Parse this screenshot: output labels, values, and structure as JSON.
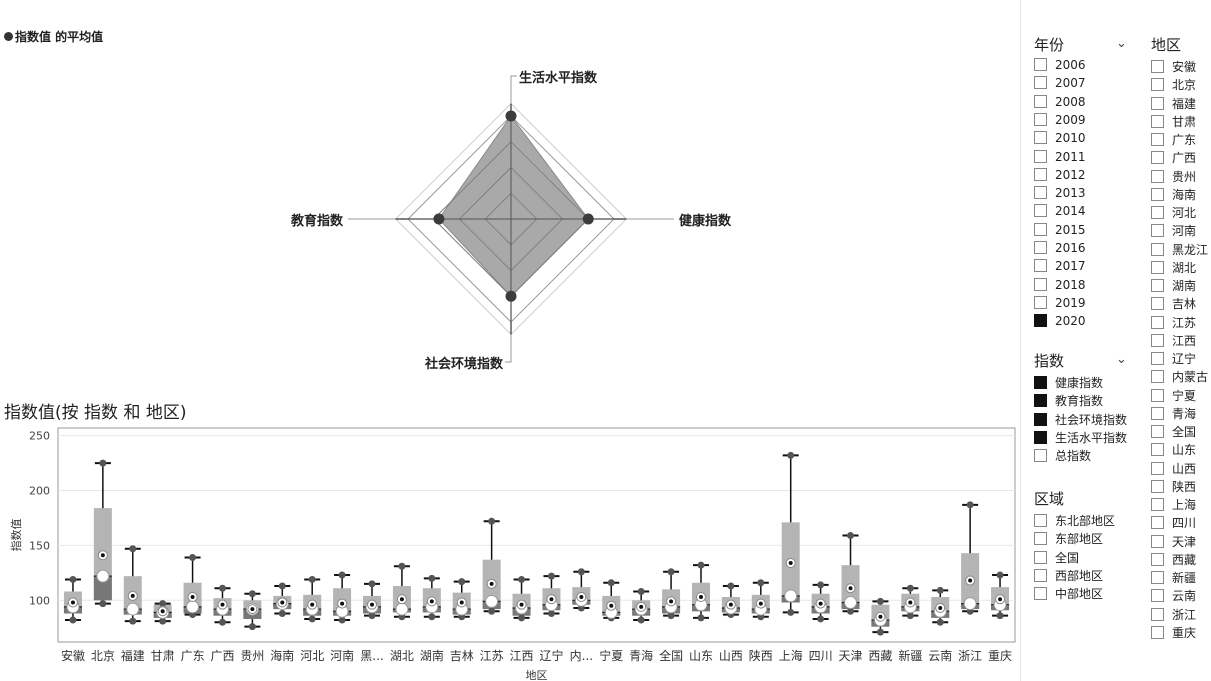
{
  "radar": {
    "legend_label": "指数值 的平均值",
    "axes": [
      "生活水平指数",
      "健康指数",
      "社会环境指数",
      "教育指数"
    ],
    "values": [
      100,
      75,
      75,
      70
    ],
    "rmax": 100
  },
  "boxplot": {
    "title": "指数值(按 指数 和 地区)",
    "xlabel": "地区",
    "ylabel": "指数值"
  },
  "slicers": {
    "year": {
      "title": "年份",
      "items": [
        "2006",
        "2007",
        "2008",
        "2009",
        "2010",
        "2011",
        "2012",
        "2013",
        "2014",
        "2015",
        "2016",
        "2017",
        "2018",
        "2019",
        "2020"
      ],
      "selected": [
        "2020"
      ]
    },
    "index": {
      "title": "指数",
      "items": [
        "健康指数",
        "教育指数",
        "社会环境指数",
        "生活水平指数",
        "总指数"
      ],
      "selected": [
        "健康指数",
        "教育指数",
        "社会环境指数",
        "生活水平指数"
      ]
    },
    "zone": {
      "title": "区域",
      "items": [
        "东北部地区",
        "东部地区",
        "全国",
        "西部地区",
        "中部地区"
      ],
      "selected": []
    },
    "region": {
      "title": "地区",
      "items": [
        "安徽",
        "北京",
        "福建",
        "甘肃",
        "广东",
        "广西",
        "贵州",
        "海南",
        "河北",
        "河南",
        "黑龙江",
        "湖北",
        "湖南",
        "吉林",
        "江苏",
        "江西",
        "辽宁",
        "内蒙古",
        "宁夏",
        "青海",
        "全国",
        "山东",
        "山西",
        "陕西",
        "上海",
        "四川",
        "天津",
        "西藏",
        "新疆",
        "云南",
        "浙江",
        "重庆"
      ],
      "selected": []
    }
  },
  "chart_data": [
    {
      "type": "radar",
      "title": "",
      "legend": [
        "指数值 的平均值"
      ],
      "categories": [
        "生活水平指数",
        "健康指数",
        "社会环境指数",
        "教育指数"
      ],
      "series": [
        {
          "name": "指数值 的平均值",
          "values": [
            100,
            75,
            75,
            70
          ]
        }
      ]
    },
    {
      "type": "boxplot",
      "title": "指数值(按 指数 和 地区)",
      "xlabel": "地区",
      "ylabel": "指数值",
      "ylim": [
        62,
        257
      ],
      "yticks": [
        100,
        150,
        200,
        250
      ],
      "categories": [
        "安徽",
        "北京",
        "福建",
        "甘肃",
        "广东",
        "广西",
        "贵州",
        "海南",
        "河北",
        "河南",
        "黑...",
        "湖北",
        "湖南",
        "吉林",
        "江苏",
        "江西",
        "辽宁",
        "内...",
        "宁夏",
        "青海",
        "全国",
        "山东",
        "山西",
        "陕西",
        "上海",
        "四川",
        "天津",
        "西藏",
        "新疆",
        "云南",
        "浙江",
        "重庆"
      ],
      "boxes": [
        {
          "min": 82,
          "q1": 88,
          "median": 94,
          "q3": 108,
          "max": 119,
          "mean": 98
        },
        {
          "min": 97,
          "q1": 100,
          "median": 122,
          "q3": 184,
          "max": 225,
          "mean": 141
        },
        {
          "min": 81,
          "q1": 87,
          "median": 92,
          "q3": 122,
          "max": 147,
          "mean": 104
        },
        {
          "min": 81,
          "q1": 84,
          "median": 89,
          "q3": 96,
          "max": 97,
          "mean": 90
        },
        {
          "min": 87,
          "q1": 88,
          "median": 94,
          "q3": 116,
          "max": 139,
          "mean": 103
        },
        {
          "min": 80,
          "q1": 86,
          "median": 92,
          "q3": 102,
          "max": 111,
          "mean": 96
        },
        {
          "min": 76,
          "q1": 83,
          "median": 92,
          "q3": 100,
          "max": 106,
          "mean": 92
        },
        {
          "min": 88,
          "q1": 92,
          "median": 97,
          "q3": 104,
          "max": 113,
          "mean": 98
        },
        {
          "min": 83,
          "q1": 86,
          "median": 92,
          "q3": 105,
          "max": 119,
          "mean": 96
        },
        {
          "min": 82,
          "q1": 86,
          "median": 90,
          "q3": 111,
          "max": 123,
          "mean": 97
        },
        {
          "min": 86,
          "q1": 88,
          "median": 94,
          "q3": 104,
          "max": 115,
          "mean": 96
        },
        {
          "min": 85,
          "q1": 89,
          "median": 92,
          "q3": 113,
          "max": 131,
          "mean": 101
        },
        {
          "min": 85,
          "q1": 89,
          "median": 94,
          "q3": 111,
          "max": 120,
          "mean": 99
        },
        {
          "min": 85,
          "q1": 87,
          "median": 92,
          "q3": 107,
          "max": 117,
          "mean": 98
        },
        {
          "min": 90,
          "q1": 92,
          "median": 99,
          "q3": 137,
          "max": 172,
          "mean": 115
        },
        {
          "min": 84,
          "q1": 86,
          "median": 93,
          "q3": 106,
          "max": 119,
          "mean": 96
        },
        {
          "min": 88,
          "q1": 91,
          "median": 96,
          "q3": 111,
          "max": 122,
          "mean": 101
        },
        {
          "min": 93,
          "q1": 96,
          "median": 100,
          "q3": 112,
          "max": 126,
          "mean": 103
        },
        {
          "min": 84,
          "q1": 86,
          "median": 89,
          "q3": 104,
          "max": 116,
          "mean": 95
        },
        {
          "min": 82,
          "q1": 86,
          "median": 92,
          "q3": 100,
          "max": 108,
          "mean": 94
        },
        {
          "min": 86,
          "q1": 88,
          "median": 94,
          "q3": 110,
          "max": 126,
          "mean": 99
        },
        {
          "min": 84,
          "q1": 90,
          "median": 96,
          "q3": 116,
          "max": 132,
          "mean": 103
        },
        {
          "min": 87,
          "q1": 89,
          "median": 93,
          "q3": 103,
          "max": 113,
          "mean": 96
        },
        {
          "min": 85,
          "q1": 88,
          "median": 92,
          "q3": 105,
          "max": 116,
          "mean": 97
        },
        {
          "min": 89,
          "q1": 98,
          "median": 104,
          "q3": 171,
          "max": 232,
          "mean": 134
        },
        {
          "min": 83,
          "q1": 88,
          "median": 94,
          "q3": 106,
          "max": 114,
          "mean": 97
        },
        {
          "min": 90,
          "q1": 92,
          "median": 98,
          "q3": 132,
          "max": 159,
          "mean": 111
        },
        {
          "min": 71,
          "q1": 76,
          "median": 82,
          "q3": 96,
          "max": 99,
          "mean": 85
        },
        {
          "min": 86,
          "q1": 90,
          "median": 94,
          "q3": 106,
          "max": 111,
          "mean": 98
        },
        {
          "min": 80,
          "q1": 84,
          "median": 90,
          "q3": 103,
          "max": 109,
          "mean": 93
        },
        {
          "min": 90,
          "q1": 92,
          "median": 97,
          "q3": 143,
          "max": 187,
          "mean": 118
        },
        {
          "min": 86,
          "q1": 91,
          "median": 96,
          "q3": 112,
          "max": 123,
          "mean": 101
        }
      ]
    }
  ]
}
